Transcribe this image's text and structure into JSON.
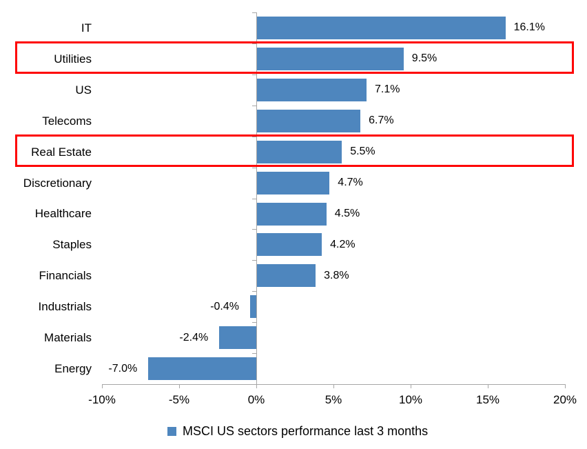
{
  "chart_data": {
    "type": "bar",
    "orientation": "horizontal",
    "title": "",
    "categories": [
      "IT",
      "Utilities",
      "US",
      "Telecoms",
      "Real Estate",
      "Discretionary",
      "Healthcare",
      "Staples",
      "Financials",
      "Industrials",
      "Materials",
      "Energy"
    ],
    "values": [
      16.1,
      9.5,
      7.1,
      6.7,
      5.5,
      4.7,
      4.5,
      4.2,
      3.8,
      -0.4,
      -2.4,
      -7.0
    ],
    "value_labels": [
      "16.1%",
      "9.5%",
      "7.1%",
      "6.7%",
      "5.5%",
      "4.7%",
      "4.5%",
      "4.2%",
      "3.8%",
      "-0.4%",
      "-2.4%",
      "-7.0%"
    ],
    "highlighted_categories": [
      "Utilities",
      "Real Estate"
    ],
    "x_tick_labels": [
      "-10%",
      "-5%",
      "0%",
      "5%",
      "10%",
      "15%",
      "20%"
    ],
    "x_tick_values": [
      -10,
      -5,
      0,
      5,
      10,
      15,
      20
    ],
    "xlim": [
      -10,
      20
    ],
    "grid": false,
    "legend": "MSCI US sectors performance last 3 months",
    "legend_position": "bottom",
    "bar_color": "#4e86be",
    "highlight_box_color": "#fe0000",
    "axis_color": "#a6a6a6",
    "text_color": "#000000"
  }
}
